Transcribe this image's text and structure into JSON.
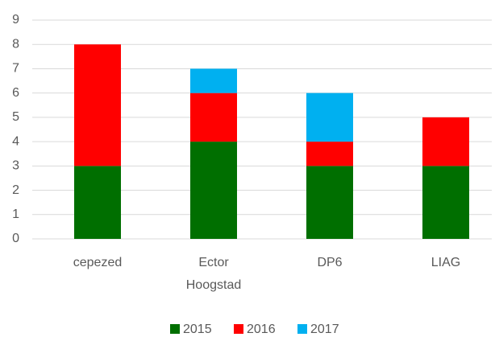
{
  "chart_data": {
    "type": "stacked_bar",
    "categories": [
      "cepezed",
      "Ector Hoogstad",
      "DP6",
      "LIAG"
    ],
    "series": [
      {
        "name": "2015",
        "color": "#006f00",
        "values": [
          3,
          4,
          3,
          3
        ]
      },
      {
        "name": "2016",
        "color": "#ff0000",
        "values": [
          5,
          2,
          1,
          2
        ]
      },
      {
        "name": "2017",
        "color": "#00b0f0",
        "values": [
          0,
          1,
          2,
          0
        ]
      }
    ],
    "ylim": [
      0,
      9
    ],
    "yticks": [
      0,
      1,
      2,
      3,
      4,
      5,
      6,
      7,
      8,
      9
    ],
    "grid": true,
    "legend": "bottom"
  }
}
